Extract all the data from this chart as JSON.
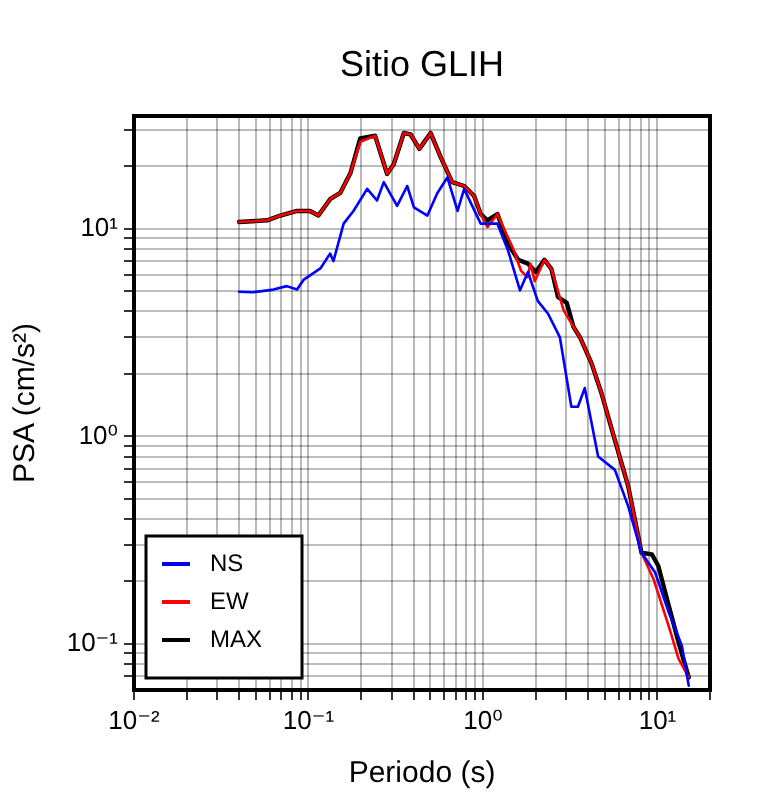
{
  "chart_data": {
    "type": "line",
    "title": "Sitio GLIH",
    "xlabel": "Periodo (s)",
    "ylabel": "PSA (cm/s²)",
    "log": "xy",
    "grid": true,
    "legend": "bottom left",
    "marker": "none",
    "line_style": "solid",
    "xlim": [
      0.01,
      20
    ],
    "ylim": [
      0.06,
      35
    ],
    "xticks": [
      {
        "value": 0.01,
        "label": "10⁻²"
      },
      {
        "value": 0.02,
        "label": null
      },
      {
        "value": 0.03,
        "label": null
      },
      {
        "value": 0.04,
        "label": null
      },
      {
        "value": 0.05,
        "label": null
      },
      {
        "value": 0.06,
        "label": null
      },
      {
        "value": 0.07,
        "label": null
      },
      {
        "value": 0.08,
        "label": null
      },
      {
        "value": 0.09,
        "label": null
      },
      {
        "value": 0.1,
        "label": "10⁻¹"
      },
      {
        "value": 0.2,
        "label": null
      },
      {
        "value": 0.3,
        "label": null
      },
      {
        "value": 0.4,
        "label": null
      },
      {
        "value": 0.5,
        "label": null
      },
      {
        "value": 0.6,
        "label": null
      },
      {
        "value": 0.7,
        "label": null
      },
      {
        "value": 0.8,
        "label": null
      },
      {
        "value": 0.9,
        "label": null
      },
      {
        "value": 1,
        "label": "10⁰"
      },
      {
        "value": 2,
        "label": null
      },
      {
        "value": 3,
        "label": null
      },
      {
        "value": 4,
        "label": null
      },
      {
        "value": 5,
        "label": null
      },
      {
        "value": 6,
        "label": null
      },
      {
        "value": 7,
        "label": null
      },
      {
        "value": 8,
        "label": null
      },
      {
        "value": 9,
        "label": null
      },
      {
        "value": 10,
        "label": "10¹"
      },
      {
        "value": 20,
        "label": null
      }
    ],
    "yticks": [
      {
        "value": 0.07,
        "label": null
      },
      {
        "value": 0.08,
        "label": null
      },
      {
        "value": 0.09,
        "label": null
      },
      {
        "value": 0.1,
        "label": "10⁻¹"
      },
      {
        "value": 0.2,
        "label": null
      },
      {
        "value": 0.3,
        "label": null
      },
      {
        "value": 0.4,
        "label": null
      },
      {
        "value": 0.5,
        "label": null
      },
      {
        "value": 0.6,
        "label": null
      },
      {
        "value": 0.7,
        "label": null
      },
      {
        "value": 0.8,
        "label": null
      },
      {
        "value": 0.9,
        "label": null
      },
      {
        "value": 1,
        "label": "10⁰"
      },
      {
        "value": 2,
        "label": null
      },
      {
        "value": 3,
        "label": null
      },
      {
        "value": 4,
        "label": null
      },
      {
        "value": 5,
        "label": null
      },
      {
        "value": 6,
        "label": null
      },
      {
        "value": 7,
        "label": null
      },
      {
        "value": 8,
        "label": null
      },
      {
        "value": 9,
        "label": null
      },
      {
        "value": 10,
        "label": "10¹"
      },
      {
        "value": 20,
        "label": null
      },
      {
        "value": 30,
        "label": null
      }
    ],
    "series": [
      {
        "name": "NS",
        "color": "#0000ff",
        "x": [
          0.04,
          0.048,
          0.063,
          0.075,
          0.086,
          0.094,
          0.117,
          0.133,
          0.139,
          0.159,
          0.181,
          0.217,
          0.247,
          0.27,
          0.322,
          0.368,
          0.402,
          0.48,
          0.548,
          0.625,
          0.715,
          0.78,
          0.97,
          1.21,
          1.39,
          1.63,
          1.81,
          2.06,
          2.36,
          2.76,
          3.21,
          3.5,
          3.83,
          4.57,
          5.7,
          6.8,
          8.1,
          9.7,
          11.6,
          13.8,
          15.1
        ],
        "values": [
          4.98,
          4.95,
          5.1,
          5.3,
          5.1,
          5.7,
          6.45,
          7.6,
          7.0,
          10.6,
          12.2,
          15.6,
          13.7,
          16.8,
          12.9,
          16.1,
          12.7,
          11.6,
          14.9,
          17.7,
          12.2,
          15.6,
          10.6,
          10.6,
          7.9,
          5.06,
          6.2,
          4.5,
          3.9,
          3.0,
          1.39,
          1.39,
          1.71,
          0.8,
          0.69,
          0.46,
          0.275,
          0.221,
          0.142,
          0.098,
          0.063
        ]
      },
      {
        "name": "EW",
        "color": "#ff0000",
        "x": [
          0.04,
          0.058,
          0.069,
          0.086,
          0.102,
          0.114,
          0.133,
          0.152,
          0.174,
          0.198,
          0.241,
          0.282,
          0.308,
          0.352,
          0.385,
          0.432,
          0.501,
          0.573,
          0.666,
          0.78,
          0.89,
          0.97,
          1.06,
          1.21,
          1.5,
          1.65,
          1.8,
          1.87,
          1.98,
          2.25,
          2.47,
          2.9,
          3.3,
          3.6,
          4.19,
          4.78,
          5.7,
          6.8,
          8.1,
          9.5,
          11.6,
          13.2,
          15.1
        ],
        "values": [
          10.8,
          11.0,
          11.6,
          12.2,
          12.2,
          11.6,
          13.9,
          14.9,
          18.6,
          26.3,
          28.1,
          18.4,
          20.5,
          29,
          28.5,
          24.3,
          29,
          22.1,
          16.8,
          16.1,
          14.4,
          11.8,
          10.2,
          11.8,
          7.9,
          6.3,
          5.85,
          6.8,
          5.6,
          7.1,
          6.4,
          4.05,
          3.37,
          3.0,
          2.25,
          1.61,
          0.96,
          0.575,
          0.275,
          0.205,
          0.122,
          0.085,
          0.069
        ]
      },
      {
        "name": "MAX",
        "color": "#000000",
        "x": [
          0.04,
          0.058,
          0.069,
          0.086,
          0.102,
          0.114,
          0.133,
          0.152,
          0.174,
          0.198,
          0.241,
          0.282,
          0.308,
          0.352,
          0.385,
          0.432,
          0.501,
          0.573,
          0.666,
          0.78,
          0.89,
          0.97,
          1.06,
          1.21,
          1.39,
          1.59,
          1.81,
          2.01,
          2.25,
          2.47,
          2.69,
          3.02,
          3.3,
          3.6,
          4.19,
          4.78,
          5.7,
          6.8,
          8.1,
          9.3,
          10.1,
          11.6,
          13.2,
          15.1
        ],
        "values": [
          10.8,
          11.0,
          11.6,
          12.2,
          12.2,
          11.6,
          13.9,
          14.9,
          18.6,
          27.3,
          28.1,
          18.4,
          20.5,
          29,
          28.5,
          24.3,
          29,
          22.1,
          16.8,
          16.1,
          14.4,
          11.8,
          11.0,
          11.8,
          8.5,
          7.1,
          6.8,
          6.2,
          7.1,
          6.4,
          4.7,
          4.4,
          3.37,
          3.0,
          2.25,
          1.61,
          0.96,
          0.575,
          0.275,
          0.27,
          0.238,
          0.153,
          0.102,
          0.069
        ]
      }
    ]
  }
}
